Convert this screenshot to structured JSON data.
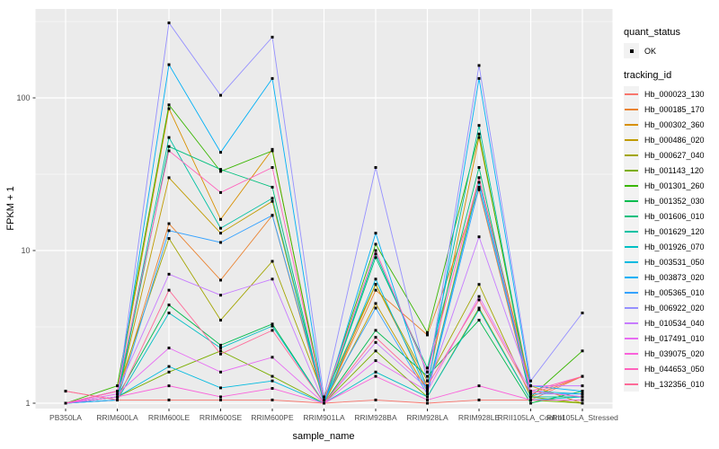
{
  "figure": {
    "panel_background": "#EBEBEB",
    "grid_color": "#FFFFFF",
    "point_color": "#000000",
    "tick_label_color": "#4D4D4D",
    "axis_title_color": "#000000"
  },
  "legend": {
    "quant_status": {
      "title": "quant_status",
      "items": [
        {
          "label": "OK"
        }
      ]
    },
    "tracking_id": {
      "title": "tracking_id"
    }
  },
  "chart_data": {
    "type": "line",
    "title": "",
    "xlabel": "sample_name",
    "ylabel": "FPKM + 1",
    "y_scale": "log10",
    "grid": true,
    "legend_position": "right",
    "y_ticks": [
      1,
      10,
      100
    ],
    "y_minor_ticks": [
      3.162,
      31.623,
      316.228
    ],
    "ylim": [
      0.92,
      380
    ],
    "categories": [
      "PB350LA",
      "RRIM600LA",
      "RRIM600LE",
      "RRIM600SE",
      "RRIM600PE",
      "RRIM901LA",
      "RRIM928BA",
      "RRIM928LA",
      "RRIM928LE",
      "RRII105LA_Control",
      "RRII105LA_Stressed"
    ],
    "series": [
      {
        "name": "Hb_000023_130",
        "color": "#F8766D",
        "values": [
          1.2,
          1.05,
          1.05,
          1.05,
          1.05,
          1.0,
          1.05,
          1.0,
          1.05,
          1.05,
          1.5
        ]
      },
      {
        "name": "Hb_000185_170",
        "color": "#EA8331",
        "values": [
          1.0,
          1.1,
          15,
          6.4,
          17,
          1.0,
          5.5,
          2.8,
          25,
          1.1,
          1.5
        ]
      },
      {
        "name": "Hb_000302_360",
        "color": "#D89000",
        "values": [
          1.0,
          1.2,
          85,
          16,
          46,
          1.0,
          6.0,
          1.3,
          55,
          1.2,
          1.1
        ]
      },
      {
        "name": "Hb_000486_020",
        "color": "#C09B00",
        "values": [
          1.0,
          1.1,
          30,
          13,
          21,
          1.0,
          4.5,
          1.2,
          30,
          1.3,
          1.0
        ]
      },
      {
        "name": "Hb_000627_040",
        "color": "#A3A500",
        "values": [
          1.0,
          1.2,
          12,
          3.5,
          8.5,
          1.1,
          6.0,
          1.4,
          6.0,
          1.1,
          1.0
        ]
      },
      {
        "name": "Hb_001143_120",
        "color": "#7CAE00",
        "values": [
          1.0,
          1.1,
          1.6,
          2.2,
          1.5,
          1.0,
          2.2,
          1.1,
          4.2,
          1.05,
          1.0
        ]
      },
      {
        "name": "Hb_001301_260",
        "color": "#39B600",
        "values": [
          1.0,
          1.3,
          90,
          33,
          45,
          1.05,
          11,
          2.9,
          58,
          1.1,
          2.2
        ]
      },
      {
        "name": "Hb_001352_030",
        "color": "#00BB4E",
        "values": [
          1.0,
          1.1,
          4.4,
          2.4,
          3.3,
          1.0,
          3.0,
          1.5,
          3.5,
          1.0,
          1.2
        ]
      },
      {
        "name": "Hb_001606_010",
        "color": "#00BF7D",
        "values": [
          1.0,
          1.05,
          48,
          34,
          26,
          1.0,
          9.0,
          1.7,
          35,
          1.05,
          1.05
        ]
      },
      {
        "name": "Hb_001629_120",
        "color": "#00C1A3",
        "values": [
          1.0,
          1.1,
          55,
          14,
          22,
          1.0,
          9.5,
          1.6,
          66,
          1.1,
          1.1
        ]
      },
      {
        "name": "Hb_001926_070",
        "color": "#00BFC4",
        "values": [
          1.0,
          1.05,
          3.9,
          2.3,
          3.2,
          1.0,
          1.6,
          1.1,
          4.1,
          1.05,
          1.1
        ]
      },
      {
        "name": "Hb_003531_050",
        "color": "#00BAE0",
        "values": [
          1.0,
          1.1,
          1.74,
          1.26,
          1.4,
          1.0,
          6.5,
          1.2,
          28,
          1.2,
          1.15
        ]
      },
      {
        "name": "Hb_003873_020",
        "color": "#00B0F6",
        "values": [
          1.0,
          1.1,
          165,
          44,
          134,
          1.0,
          13,
          1.2,
          134,
          1.3,
          1.2
        ]
      },
      {
        "name": "Hb_005365_010",
        "color": "#35A2FF",
        "values": [
          1.0,
          1.05,
          13.5,
          11.3,
          17,
          1.05,
          4.2,
          1.15,
          26,
          1.15,
          1.15
        ]
      },
      {
        "name": "Hb_006922_020",
        "color": "#9590FF",
        "values": [
          1.0,
          1.1,
          310,
          104,
          250,
          1.1,
          35,
          1.4,
          163,
          1.4,
          3.9
        ]
      },
      {
        "name": "Hb_010534_040",
        "color": "#C77CFF",
        "values": [
          1.0,
          1.2,
          7.0,
          5.1,
          6.5,
          1.0,
          2.5,
          1.25,
          12.3,
          1.3,
          1.3
        ]
      },
      {
        "name": "Hb_017491_010",
        "color": "#E76BF3",
        "values": [
          1.0,
          1.15,
          2.3,
          1.6,
          2.0,
          1.0,
          1.9,
          1.2,
          5.0,
          1.2,
          1.1
        ]
      },
      {
        "name": "Hb_039075_020",
        "color": "#FA62DB",
        "values": [
          1.0,
          1.1,
          1.3,
          1.1,
          1.25,
          1.0,
          1.5,
          1.05,
          1.3,
          1.05,
          1.05
        ]
      },
      {
        "name": "Hb_044653_050",
        "color": "#FF62BC",
        "values": [
          1.0,
          1.2,
          45,
          24,
          35,
          1.05,
          10,
          1.6,
          30,
          1.2,
          1.5
        ]
      },
      {
        "name": "Hb_132356_010",
        "color": "#FF6A98",
        "values": [
          1.2,
          1.05,
          5.5,
          2.1,
          3.0,
          1.0,
          2.7,
          1.3,
          4.75,
          1.15,
          1.5
        ]
      }
    ]
  }
}
